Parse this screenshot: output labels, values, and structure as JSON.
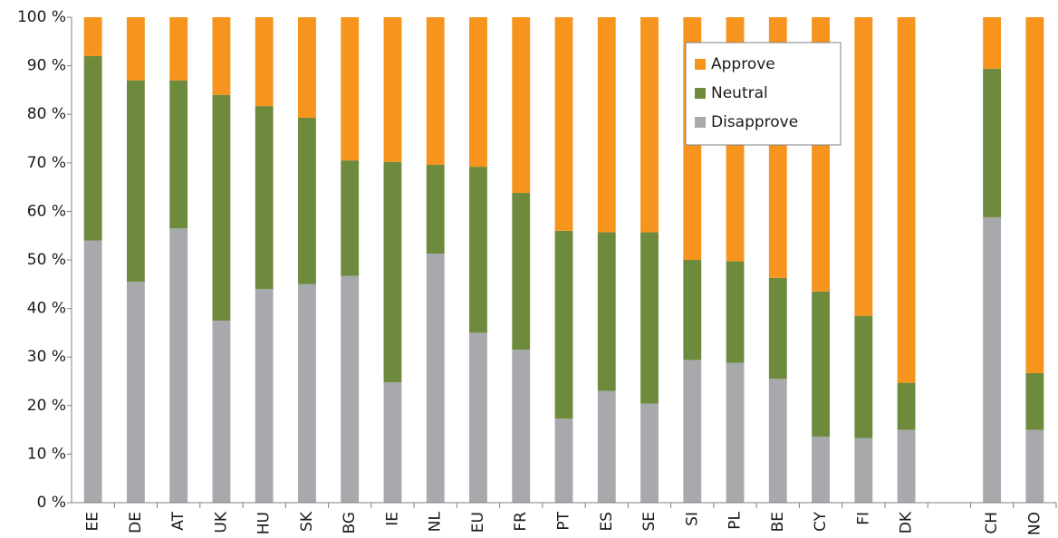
{
  "chart_data": {
    "type": "stacked_bar",
    "categories": [
      "EE",
      "DE",
      "AT",
      "UK",
      "HU",
      "SK",
      "BG",
      "IE",
      "NL",
      "EU",
      "FR",
      "PT",
      "ES",
      "SE",
      "SI",
      "PL",
      "BE",
      "CY",
      "FI",
      "DK",
      null,
      "CH",
      "NO"
    ],
    "series": [
      {
        "name": "Disapprove",
        "color": "#a7a9ac",
        "values": [
          54,
          45.5,
          56.5,
          37.5,
          44,
          45,
          46.7,
          24.8,
          51.3,
          35,
          31.5,
          17.3,
          23,
          20.4,
          29.4,
          28.8,
          25.5,
          13.6,
          13.3,
          15,
          null,
          58.8,
          15
        ]
      },
      {
        "name": "Neutral",
        "color": "#6e8b3d",
        "values": [
          38,
          41.5,
          30.5,
          46.5,
          37.7,
          34.3,
          23.8,
          45.4,
          18.3,
          34.2,
          32.3,
          38.7,
          32.7,
          35.3,
          20.6,
          20.9,
          20.8,
          29.9,
          25.2,
          9.7,
          null,
          30.6,
          11.7
        ]
      },
      {
        "name": "Approve",
        "color": "#f7941d",
        "values": [
          8,
          13,
          13,
          16,
          18.3,
          20.7,
          29.5,
          29.8,
          30.4,
          30.8,
          36.2,
          44,
          44.3,
          44.3,
          50,
          50.3,
          53.7,
          56.5,
          61.5,
          75.3,
          null,
          10.6,
          73.3
        ]
      }
    ],
    "ylim": [
      0,
      100
    ],
    "yticks": [
      {
        "value": 0,
        "label": "0 %"
      },
      {
        "value": 10,
        "label": "10 %"
      },
      {
        "value": 20,
        "label": "20 %"
      },
      {
        "value": 30,
        "label": "30 %"
      },
      {
        "value": 40,
        "label": "40 %"
      },
      {
        "value": 50,
        "label": "50 %"
      },
      {
        "value": 60,
        "label": "60 %"
      },
      {
        "value": 70,
        "label": "70 %"
      },
      {
        "value": 80,
        "label": "80 %"
      },
      {
        "value": 90,
        "label": "90 %"
      },
      {
        "value": 100,
        "label": "100 %"
      }
    ],
    "grid": false,
    "legend": "top-right"
  }
}
